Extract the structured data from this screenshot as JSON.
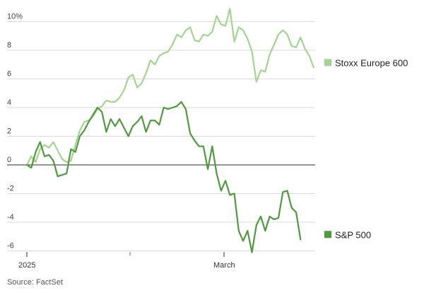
{
  "chart_data": {
    "type": "line",
    "y_ticks": [
      {
        "value": 10,
        "label": "10%"
      },
      {
        "value": 8,
        "label": "8"
      },
      {
        "value": 6,
        "label": "6"
      },
      {
        "value": 4,
        "label": "4"
      },
      {
        "value": 2,
        "label": "2"
      },
      {
        "value": 0,
        "label": "0"
      },
      {
        "value": -2,
        "label": "-2"
      },
      {
        "value": -4,
        "label": "-4"
      },
      {
        "value": -6,
        "label": "-6"
      }
    ],
    "x_labels": [
      "2025",
      "March"
    ],
    "ylim": [
      -6.5,
      11
    ],
    "grid": true,
    "source": "Source: FactSet",
    "series": [
      {
        "name": "Stoxx Europe 600",
        "color": "#a3d491",
        "points": [
          [
            0,
            0
          ],
          [
            1,
            0.6
          ],
          [
            2,
            0.2
          ],
          [
            3,
            1.1
          ],
          [
            4,
            1.4
          ],
          [
            5,
            1.2
          ],
          [
            6,
            1.6
          ],
          [
            7,
            1.0
          ],
          [
            8,
            0.4
          ],
          [
            9,
            0.2
          ],
          [
            10,
            0.3
          ],
          [
            11,
            1.4
          ],
          [
            12,
            2.4
          ],
          [
            13,
            3.0
          ],
          [
            14,
            3.1
          ],
          [
            15,
            3.4
          ],
          [
            16,
            3.9
          ],
          [
            17,
            4.1
          ],
          [
            18,
            4.5
          ],
          [
            19,
            4.4
          ],
          [
            20,
            4.4
          ],
          [
            21,
            4.7
          ],
          [
            22,
            5.2
          ],
          [
            23,
            6.1
          ],
          [
            24,
            6.3
          ],
          [
            25,
            5.4
          ],
          [
            26,
            5.7
          ],
          [
            27,
            6.4
          ],
          [
            28,
            7.3
          ],
          [
            29,
            7.0
          ],
          [
            30,
            7.6
          ],
          [
            31,
            7.8
          ],
          [
            32,
            7.9
          ],
          [
            33,
            8.4
          ],
          [
            34,
            9.1
          ],
          [
            35,
            8.9
          ],
          [
            36,
            9.4
          ],
          [
            37,
            9.6
          ],
          [
            38,
            8.7
          ],
          [
            39,
            8.6
          ],
          [
            40,
            9.1
          ],
          [
            41,
            9.0
          ],
          [
            42,
            9.3
          ],
          [
            43,
            10.4
          ],
          [
            44,
            9.8
          ],
          [
            45,
            9.7
          ],
          [
            46,
            10.9
          ],
          [
            47,
            8.6
          ],
          [
            48,
            9.6
          ],
          [
            49,
            9.4
          ],
          [
            50,
            8.8
          ],
          [
            51,
            7.9
          ],
          [
            52,
            5.8
          ],
          [
            53,
            6.6
          ],
          [
            54,
            6.5
          ],
          [
            55,
            7.7
          ],
          [
            56,
            8.4
          ],
          [
            57,
            9.1
          ],
          [
            58,
            9.4
          ],
          [
            59,
            9.1
          ],
          [
            60,
            8.3
          ],
          [
            61,
            8.2
          ],
          [
            62,
            8.9
          ],
          [
            63,
            8.1
          ],
          [
            64,
            7.6
          ],
          [
            65,
            6.8
          ]
        ],
        "gaps": []
      },
      {
        "name": "S&P 500",
        "color": "#4f9a3d",
        "points": [
          [
            0,
            0
          ],
          [
            1,
            -0.2
          ],
          [
            2,
            0.9
          ],
          [
            3,
            1.6
          ],
          [
            4,
            0.6
          ],
          [
            5,
            0.7
          ],
          [
            6,
            0.3
          ],
          [
            7,
            -0.8
          ],
          [
            8,
            -0.7
          ],
          [
            9,
            -0.6
          ],
          [
            10,
            1.1
          ],
          [
            11,
            0.9
          ],
          [
            12,
            2.0
          ],
          [
            13,
            2.4
          ],
          [
            14,
            3.0
          ],
          [
            15,
            3.5
          ],
          [
            16,
            4.0
          ],
          [
            17,
            3.7
          ],
          [
            18,
            2.3
          ],
          [
            19,
            3.2
          ],
          [
            20,
            2.7
          ],
          [
            21,
            3.2
          ],
          [
            22,
            2.6
          ],
          [
            23,
            2.0
          ],
          [
            24,
            2.7
          ],
          [
            25,
            3.0
          ],
          [
            26,
            3.4
          ],
          [
            27,
            2.3
          ],
          [
            28,
            3.1
          ],
          [
            29,
            3.1
          ],
          [
            30,
            2.8
          ],
          [
            31,
            4.0
          ],
          [
            32,
            3.9
          ],
          [
            33,
            4.0
          ],
          [
            34,
            4.1
          ],
          [
            35,
            4.4
          ],
          [
            36,
            3.9
          ],
          [
            37,
            2.2
          ],
          [
            38,
            1.7
          ],
          [
            39,
            1.3
          ],
          [
            40,
            1.3
          ],
          [
            41,
            -0.3
          ],
          [
            42,
            1.3
          ],
          [
            43,
            -0.6
          ],
          [
            44,
            -1.8
          ],
          [
            45,
            -1.1
          ],
          [
            46,
            -2.1
          ],
          [
            47,
            -2.0
          ],
          [
            48,
            -4.6
          ],
          [
            49,
            -5.3
          ],
          [
            50,
            -4.6
          ],
          [
            51,
            -6.1
          ],
          [
            52,
            -4.2
          ],
          [
            53,
            -3.6
          ],
          [
            54,
            -4.6
          ],
          [
            55,
            -3.6
          ],
          [
            56,
            -3.8
          ],
          [
            57,
            -3.7
          ],
          [
            58,
            -1.9
          ],
          [
            59,
            -1.8
          ],
          [
            60,
            -3.0
          ],
          [
            61,
            -3.3
          ],
          [
            62,
            -5.2
          ]
        ],
        "gaps": [
          [
            5,
            8
          ],
          [
            12,
            15
          ],
          [
            31,
            34
          ]
        ]
      }
    ]
  }
}
